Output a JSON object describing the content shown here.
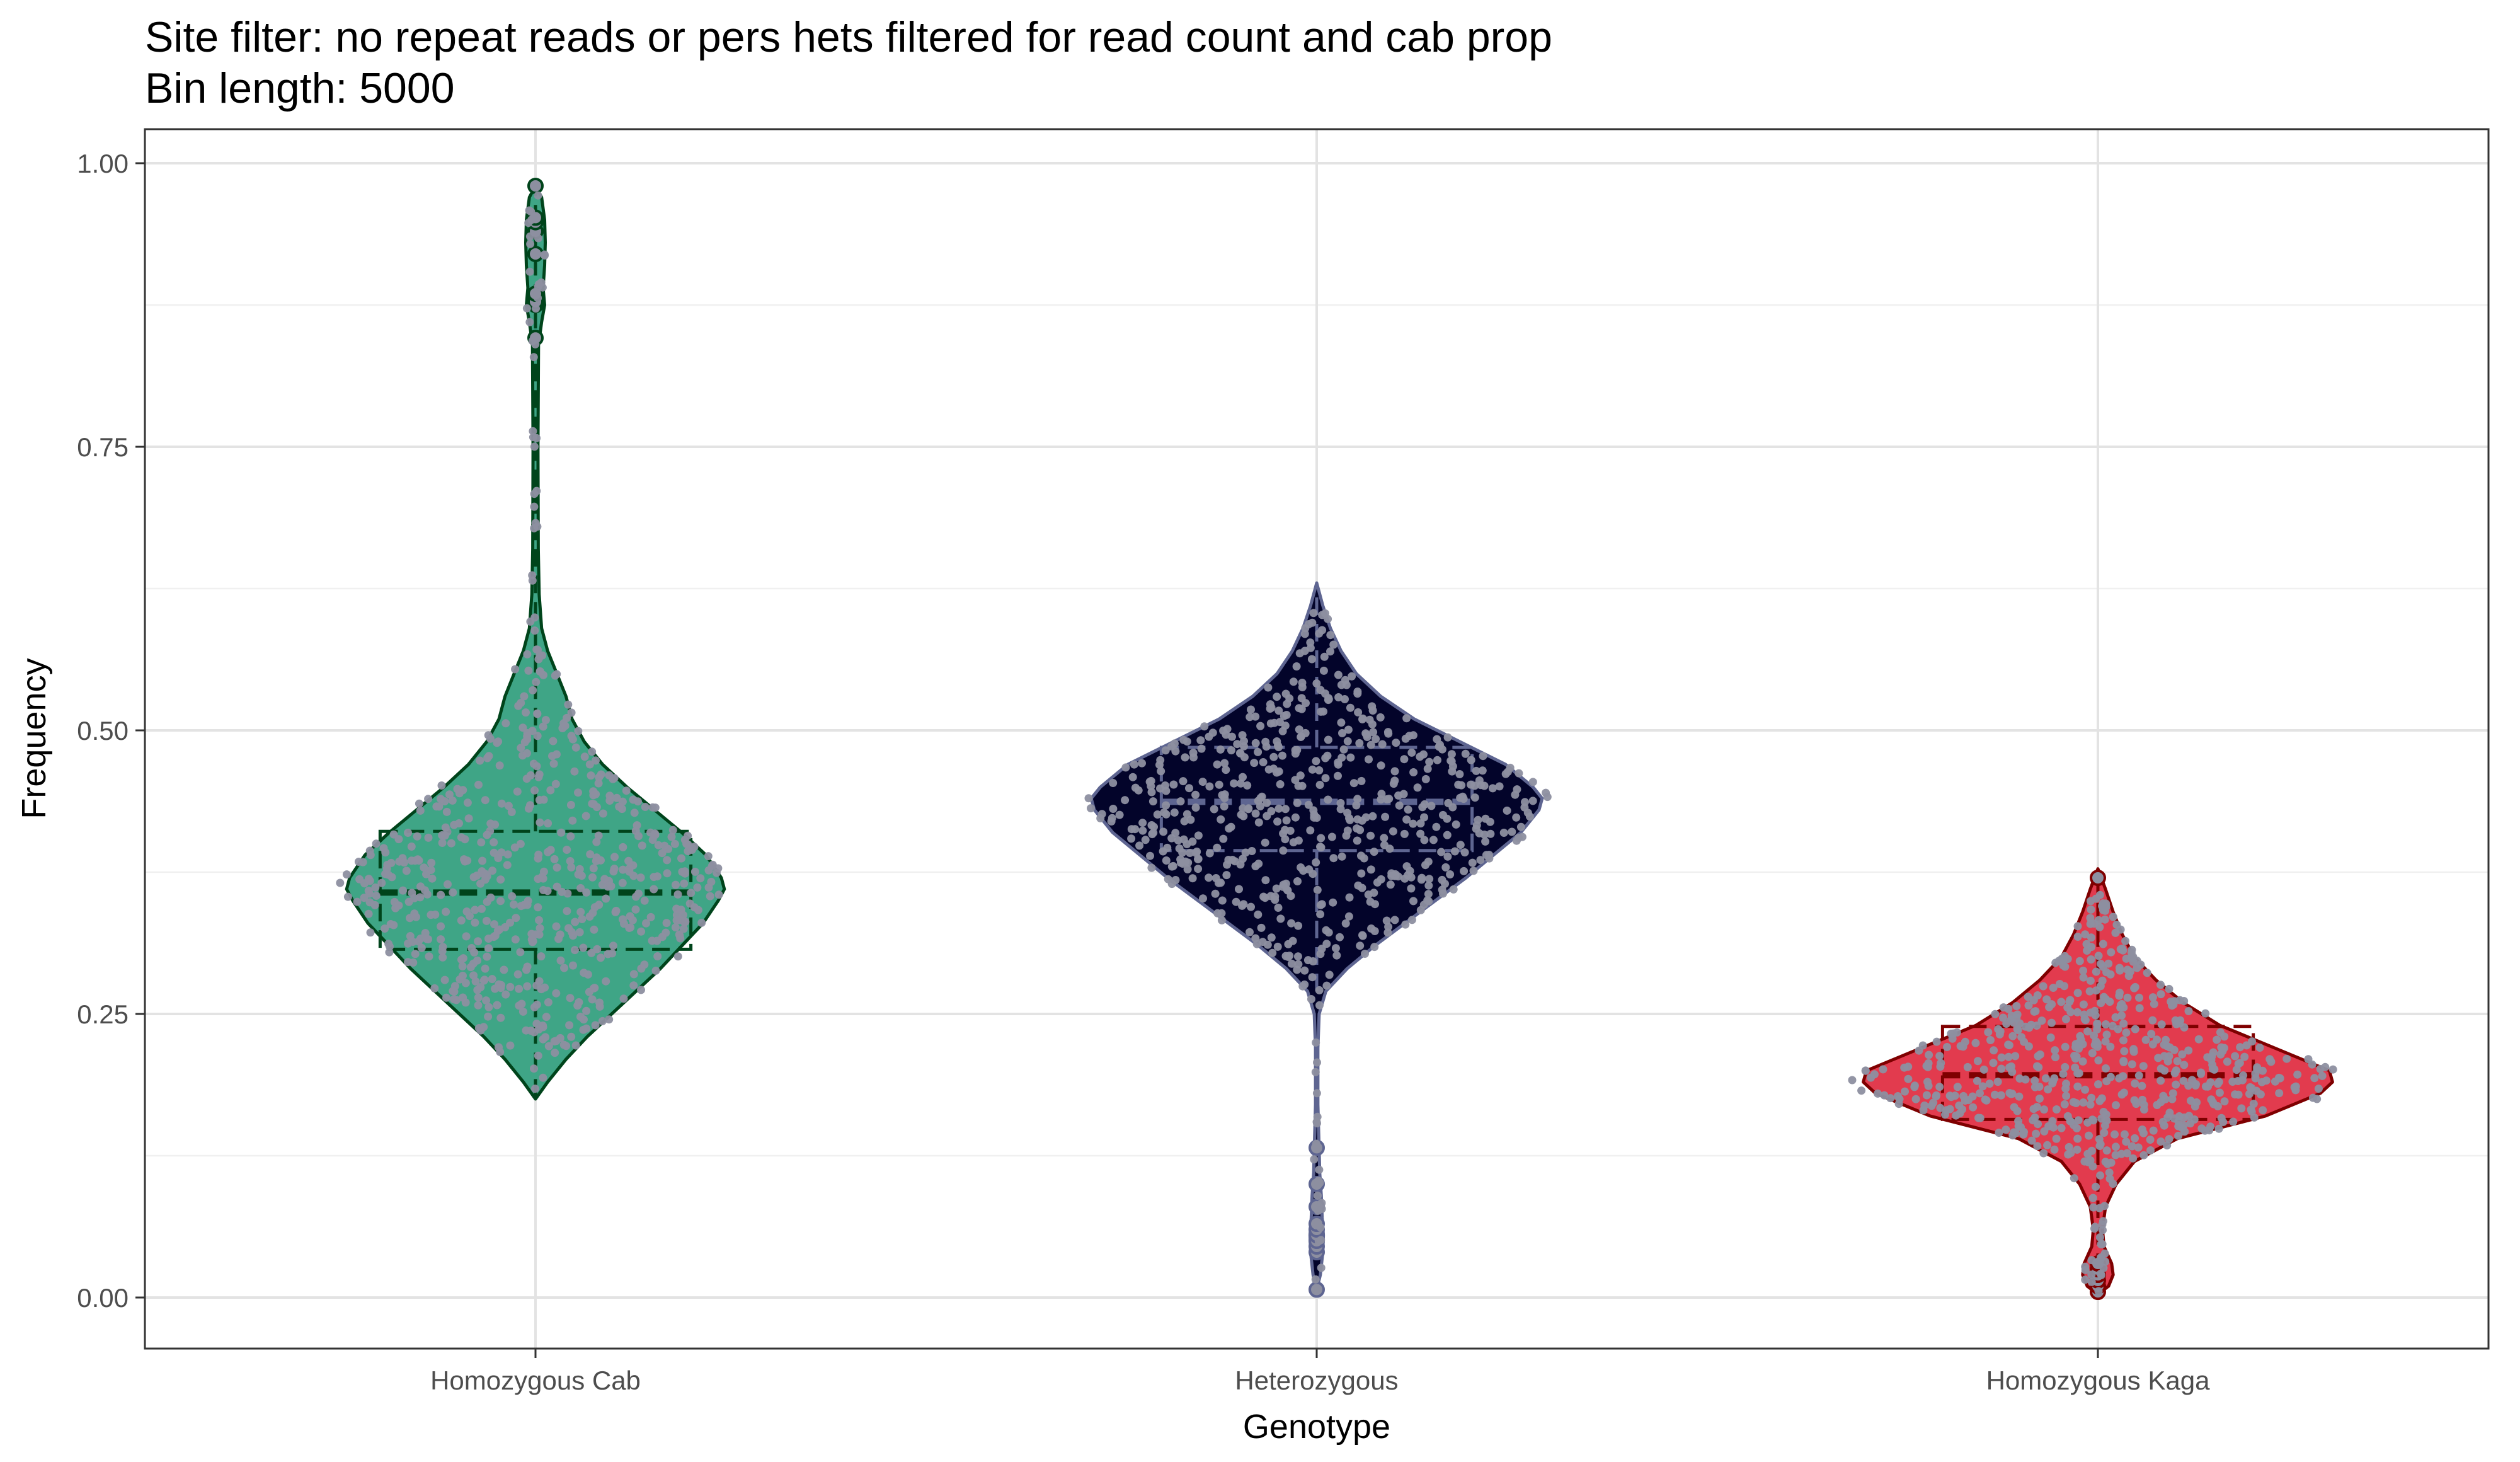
{
  "chart_data": {
    "type": "violin",
    "title": "Site filter: no repeat reads or pers hets filtered for read count and cab prop",
    "subtitle": "Bin length: 5000",
    "xlabel": "Genotype",
    "ylabel": "Frequency",
    "ylim": [
      -0.045,
      1.03
    ],
    "yticks": [
      0.0,
      0.25,
      0.5,
      0.75,
      1.0
    ],
    "ytick_labels": [
      "0.00",
      "0.25",
      "0.50",
      "0.75",
      "1.00"
    ],
    "grid": true,
    "categories": [
      "Homozygous Cab",
      "Heterozygous",
      "Homozygous Kaga"
    ],
    "series": [
      {
        "category": "Homozygous Cab",
        "fill": "#3fa586",
        "line": "#00441b",
        "box": {
          "q1": 0.307,
          "median": 0.357,
          "q3": 0.411,
          "whisker_low": 0.177,
          "whisker_high": 0.98
        },
        "density": [
          [
            0.175,
            0.0
          ],
          [
            0.19,
            0.04
          ],
          [
            0.21,
            0.1
          ],
          [
            0.23,
            0.17
          ],
          [
            0.25,
            0.25
          ],
          [
            0.27,
            0.33
          ],
          [
            0.29,
            0.41
          ],
          [
            0.31,
            0.48
          ],
          [
            0.33,
            0.55
          ],
          [
            0.35,
            0.6
          ],
          [
            0.36,
            0.62
          ],
          [
            0.37,
            0.61
          ],
          [
            0.39,
            0.56
          ],
          [
            0.41,
            0.48
          ],
          [
            0.43,
            0.39
          ],
          [
            0.45,
            0.3
          ],
          [
            0.47,
            0.22
          ],
          [
            0.49,
            0.16
          ],
          [
            0.51,
            0.12
          ],
          [
            0.53,
            0.1
          ],
          [
            0.55,
            0.07
          ],
          [
            0.57,
            0.04
          ],
          [
            0.59,
            0.02
          ],
          [
            0.62,
            0.012
          ],
          [
            0.66,
            0.009
          ],
          [
            0.75,
            0.008
          ],
          [
            0.84,
            0.01
          ],
          [
            0.86,
            0.02
          ],
          [
            0.875,
            0.03
          ],
          [
            0.89,
            0.025
          ],
          [
            0.91,
            0.03
          ],
          [
            0.93,
            0.032
          ],
          [
            0.95,
            0.03
          ],
          [
            0.97,
            0.02
          ],
          [
            0.98,
            0.0
          ]
        ],
        "outliers": [
          0.846,
          0.875,
          0.878,
          0.885,
          0.92,
          0.94,
          0.948,
          0.952,
          0.98
        ]
      },
      {
        "category": "Heterozygous",
        "fill": "#03042a",
        "line": "#5e6591",
        "box": {
          "q1": 0.394,
          "median": 0.437,
          "q3": 0.485,
          "whisker_low": 0.27,
          "whisker_high": 0.63
        },
        "density": [
          [
            0.007,
            0.0
          ],
          [
            0.02,
            0.012
          ],
          [
            0.04,
            0.02
          ],
          [
            0.055,
            0.022
          ],
          [
            0.07,
            0.018
          ],
          [
            0.09,
            0.015
          ],
          [
            0.11,
            0.01
          ],
          [
            0.13,
            0.008
          ],
          [
            0.17,
            0.004
          ],
          [
            0.22,
            0.004
          ],
          [
            0.25,
            0.008
          ],
          [
            0.27,
            0.03
          ],
          [
            0.29,
            0.1
          ],
          [
            0.31,
            0.19
          ],
          [
            0.33,
            0.29
          ],
          [
            0.35,
            0.39
          ],
          [
            0.37,
            0.49
          ],
          [
            0.39,
            0.58
          ],
          [
            0.41,
            0.67
          ],
          [
            0.43,
            0.73
          ],
          [
            0.44,
            0.74
          ],
          [
            0.45,
            0.71
          ],
          [
            0.47,
            0.62
          ],
          [
            0.49,
            0.47
          ],
          [
            0.51,
            0.32
          ],
          [
            0.53,
            0.21
          ],
          [
            0.55,
            0.13
          ],
          [
            0.57,
            0.08
          ],
          [
            0.59,
            0.045
          ],
          [
            0.61,
            0.02
          ],
          [
            0.63,
            0.0
          ]
        ],
        "outliers": [
          0.007,
          0.04,
          0.045,
          0.05,
          0.055,
          0.06,
          0.065,
          0.08,
          0.1,
          0.132
        ]
      },
      {
        "category": "Homozygous Kaga",
        "fill": "#e23b4e",
        "line": "#7f0000",
        "box": {
          "q1": 0.157,
          "median": 0.196,
          "q3": 0.239,
          "whisker_low": 0.0,
          "whisker_high": 0.373
        },
        "density": [
          [
            0.003,
            0.0
          ],
          [
            0.01,
            0.035
          ],
          [
            0.02,
            0.05
          ],
          [
            0.03,
            0.045
          ],
          [
            0.045,
            0.02
          ],
          [
            0.06,
            0.015
          ],
          [
            0.08,
            0.025
          ],
          [
            0.1,
            0.06
          ],
          [
            0.12,
            0.12
          ],
          [
            0.14,
            0.26
          ],
          [
            0.16,
            0.55
          ],
          [
            0.18,
            0.73
          ],
          [
            0.19,
            0.77
          ],
          [
            0.2,
            0.76
          ],
          [
            0.22,
            0.58
          ],
          [
            0.24,
            0.4
          ],
          [
            0.26,
            0.28
          ],
          [
            0.28,
            0.19
          ],
          [
            0.3,
            0.12
          ],
          [
            0.32,
            0.08
          ],
          [
            0.34,
            0.05
          ],
          [
            0.36,
            0.025
          ],
          [
            0.378,
            0.0
          ]
        ],
        "outliers": [
          0.005,
          0.01,
          0.015,
          0.02,
          0.025,
          0.03,
          0.37
        ]
      }
    ],
    "point_color": "#8d8fa0"
  }
}
